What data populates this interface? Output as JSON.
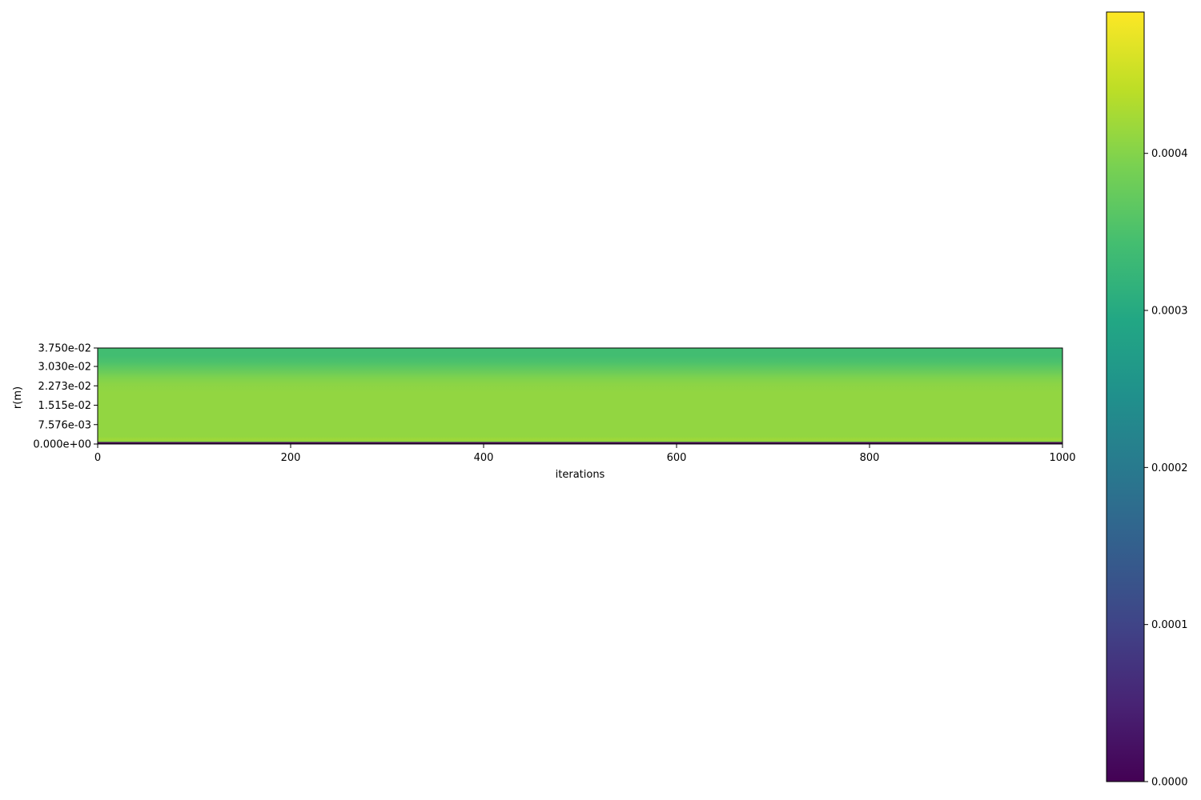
{
  "chart_data": {
    "type": "heatmap",
    "title": "",
    "xlabel": "iterations",
    "ylabel": "r(m)",
    "xlim": [
      0,
      1000
    ],
    "ylim": [
      0,
      0.0375
    ],
    "xticks": [
      0,
      200,
      400,
      600,
      800,
      1000
    ],
    "xtick_labels": [
      "0",
      "200",
      "400",
      "600",
      "800",
      "1000"
    ],
    "yticks": [
      0,
      0.007576,
      0.01515,
      0.02273,
      0.0303,
      0.0375
    ],
    "ytick_labels": [
      "0.000e+00",
      "7.576e-03",
      "1.515e-02",
      "2.273e-02",
      "3.030e-02",
      "3.750e-02"
    ],
    "colormap": "viridis",
    "colorbar": {
      "vmin": 0,
      "vmax": 0.00049,
      "ticks": [
        0,
        0.0001,
        0.0002,
        0.0003,
        0.0004
      ],
      "tick_labels": [
        "0.0000",
        "0.0001",
        "0.0002",
        "0.0003",
        "0.0004"
      ]
    },
    "radial_profile": {
      "r": [
        0.0,
        0.0005,
        0.001,
        0.0015,
        0.003,
        0.008,
        0.015,
        0.02,
        0.0235,
        0.026,
        0.028,
        0.03,
        0.032,
        0.0345,
        0.0375
      ],
      "value": [
        0.0,
        0.0,
        0.0004,
        0.00042,
        0.00041,
        0.00041,
        0.00041,
        0.00041,
        0.000405,
        0.000395,
        0.00038,
        0.000365,
        0.00035,
        0.00034,
        0.00034
      ]
    },
    "grid": false,
    "legend": "none"
  }
}
